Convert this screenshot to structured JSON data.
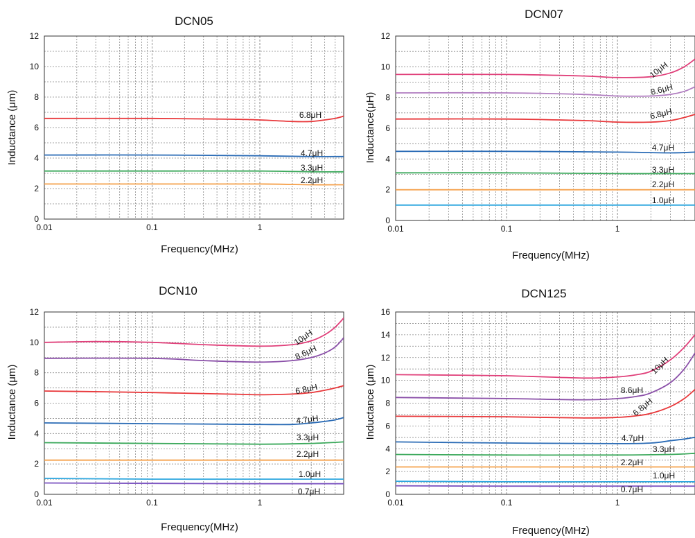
{
  "chart_data": [
    {
      "type": "line",
      "title": "DCN05",
      "xlabel": "Frequency(MHz)",
      "ylabel": "Inductance (μm)",
      "x_scale": "log",
      "xlim": [
        0.01,
        6
      ],
      "ylim": [
        0,
        12
      ],
      "x_ticks": [
        0.01,
        0.1,
        1
      ],
      "x_tick_labels": [
        "0.01",
        "0.1",
        "1"
      ],
      "y_ticks": [
        0,
        2,
        4,
        6,
        8,
        10,
        12
      ],
      "y_tick_labels": [
        "0",
        "2",
        "4",
        "6",
        "8",
        "10",
        "12"
      ],
      "grid": true,
      "series": [
        {
          "name": "6.8μH",
          "color": "#e8373a",
          "x": [
            0.01,
            0.1,
            0.5,
            1,
            2,
            3,
            4,
            5,
            6
          ],
          "y": [
            6.6,
            6.6,
            6.55,
            6.5,
            6.4,
            6.4,
            6.5,
            6.6,
            6.75
          ]
        },
        {
          "name": "4.7μH",
          "color": "#2a6bb5",
          "x": [
            0.01,
            0.1,
            1,
            3,
            6
          ],
          "y": [
            4.2,
            4.2,
            4.15,
            4.1,
            4.1
          ]
        },
        {
          "name": "3.3μH",
          "color": "#3aa85a",
          "x": [
            0.01,
            0.1,
            1,
            3,
            6
          ],
          "y": [
            3.15,
            3.15,
            3.15,
            3.1,
            3.1
          ]
        },
        {
          "name": "2.2μH",
          "color": "#f5a04a",
          "x": [
            0.01,
            0.1,
            1,
            3,
            6
          ],
          "y": [
            2.3,
            2.3,
            2.3,
            2.25,
            2.25
          ]
        }
      ]
    },
    {
      "type": "line",
      "title": "DCN07",
      "xlabel": "Frequency(MHz)",
      "ylabel": "Inductance(μH)",
      "x_scale": "log",
      "xlim": [
        0.01,
        5
      ],
      "ylim": [
        0,
        12
      ],
      "x_ticks": [
        0.01,
        0.1,
        1
      ],
      "x_tick_labels": [
        "0.01",
        "0.1",
        "1"
      ],
      "y_ticks": [
        0,
        2,
        4,
        6,
        8,
        10,
        12
      ],
      "y_tick_labels": [
        "0",
        "2",
        "4",
        "6",
        "8",
        "10",
        "12"
      ],
      "grid": true,
      "series": [
        {
          "name": "10μH",
          "color": "#e0407a",
          "x": [
            0.01,
            0.1,
            0.5,
            1,
            2,
            3,
            4,
            5
          ],
          "y": [
            9.5,
            9.5,
            9.4,
            9.3,
            9.35,
            9.6,
            10.0,
            10.5
          ]
        },
        {
          "name": "8.6μH",
          "color": "#b07cc0",
          "x": [
            0.01,
            0.1,
            0.5,
            1,
            2,
            3,
            4,
            5
          ],
          "y": [
            8.3,
            8.3,
            8.2,
            8.1,
            8.1,
            8.2,
            8.4,
            8.7
          ]
        },
        {
          "name": "6.8μH",
          "color": "#e8373a",
          "x": [
            0.01,
            0.1,
            0.5,
            1,
            2,
            3,
            4,
            5
          ],
          "y": [
            6.6,
            6.6,
            6.5,
            6.4,
            6.4,
            6.5,
            6.7,
            6.9
          ]
        },
        {
          "name": "4.7μH",
          "color": "#2a6bb5",
          "x": [
            0.01,
            0.1,
            1,
            3,
            5
          ],
          "y": [
            4.5,
            4.5,
            4.45,
            4.4,
            4.45
          ]
        },
        {
          "name": "3.3μH",
          "color": "#3aa85a",
          "x": [
            0.01,
            0.1,
            1,
            5
          ],
          "y": [
            3.1,
            3.1,
            3.05,
            3.05
          ]
        },
        {
          "name": "2.2μH",
          "color": "#f5a04a",
          "x": [
            0.01,
            0.1,
            1,
            5
          ],
          "y": [
            2.0,
            2.0,
            2.0,
            2.0
          ]
        },
        {
          "name": "1.0μH",
          "color": "#2fa7df",
          "x": [
            0.01,
            0.1,
            1,
            5
          ],
          "y": [
            1.0,
            1.0,
            1.0,
            1.0
          ]
        }
      ]
    },
    {
      "type": "line",
      "title": "DCN10",
      "xlabel": "Frequency(MHz)",
      "ylabel": "Inductance (μm)",
      "x_scale": "log",
      "xlim": [
        0.01,
        6
      ],
      "ylim": [
        0,
        12
      ],
      "x_ticks": [
        0.01,
        0.1,
        1
      ],
      "x_tick_labels": [
        "0.01",
        "0.1",
        "1"
      ],
      "y_ticks": [
        0,
        2,
        4,
        6,
        8,
        10,
        12
      ],
      "y_tick_labels": [
        "0",
        "2",
        "4",
        "6",
        "8",
        "10",
        "12"
      ],
      "grid": true,
      "series": [
        {
          "name": "10μH",
          "color": "#e0407a",
          "x": [
            0.01,
            0.03,
            0.1,
            0.3,
            1,
            2,
            3,
            4,
            5,
            6
          ],
          "y": [
            10.0,
            10.05,
            10.0,
            9.85,
            9.75,
            9.85,
            10.1,
            10.5,
            11.0,
            11.6
          ]
        },
        {
          "name": "8.6μH",
          "color": "#8a4fa8",
          "x": [
            0.01,
            0.1,
            0.3,
            1,
            2,
            3,
            4,
            5,
            6
          ],
          "y": [
            8.95,
            8.95,
            8.8,
            8.7,
            8.8,
            9.0,
            9.3,
            9.7,
            10.3
          ]
        },
        {
          "name": "6.8μH",
          "color": "#e8373a",
          "x": [
            0.01,
            0.1,
            0.5,
            1,
            2,
            3,
            4,
            5,
            6
          ],
          "y": [
            6.8,
            6.7,
            6.6,
            6.55,
            6.6,
            6.7,
            6.85,
            7.0,
            7.15
          ]
        },
        {
          "name": "4.7μH",
          "color": "#2a6bb5",
          "x": [
            0.01,
            0.1,
            1,
            2,
            3,
            4,
            5,
            6
          ],
          "y": [
            4.7,
            4.65,
            4.6,
            4.6,
            4.7,
            4.8,
            4.9,
            5.05
          ]
        },
        {
          "name": "3.3μH",
          "color": "#3aa85a",
          "x": [
            0.01,
            0.1,
            1,
            3,
            6
          ],
          "y": [
            3.4,
            3.35,
            3.3,
            3.35,
            3.45
          ]
        },
        {
          "name": "2.2μH",
          "color": "#f5a04a",
          "x": [
            0.01,
            0.1,
            1,
            6
          ],
          "y": [
            2.25,
            2.25,
            2.25,
            2.25
          ]
        },
        {
          "name": "1.0μH",
          "color": "#2fa7df",
          "x": [
            0.01,
            0.1,
            1,
            6
          ],
          "y": [
            1.05,
            1.0,
            1.0,
            1.0
          ]
        },
        {
          "name": "0.7μH",
          "color": "#7e57c2",
          "x": [
            0.01,
            0.1,
            1,
            6
          ],
          "y": [
            0.75,
            0.72,
            0.7,
            0.7
          ]
        }
      ]
    },
    {
      "type": "line",
      "title": "DCN125",
      "xlabel": "Frequency(MHz)",
      "ylabel": "Inductance (μm)",
      "x_scale": "log",
      "xlim": [
        0.01,
        5
      ],
      "ylim": [
        0,
        16
      ],
      "x_ticks": [
        0.01,
        0.1,
        1
      ],
      "x_tick_labels": [
        "0.01",
        "0.1",
        "1"
      ],
      "y_ticks": [
        0,
        2,
        4,
        6,
        8,
        10,
        12,
        14,
        16
      ],
      "y_tick_labels": [
        "0",
        "2",
        "4",
        "6",
        "8",
        "10",
        "12",
        "14",
        "16"
      ],
      "grid": true,
      "series": [
        {
          "name": "10μH",
          "color": "#e0407a",
          "x": [
            0.01,
            0.1,
            0.5,
            1,
            1.5,
            2,
            3,
            4,
            5
          ],
          "y": [
            10.5,
            10.4,
            10.2,
            10.3,
            10.5,
            10.8,
            11.8,
            12.9,
            14.0
          ]
        },
        {
          "name": "8.6μH",
          "color": "#8a4fa8",
          "x": [
            0.01,
            0.1,
            0.5,
            1,
            1.5,
            2,
            3,
            4,
            5
          ],
          "y": [
            8.5,
            8.4,
            8.3,
            8.4,
            8.6,
            8.9,
            9.8,
            11.0,
            12.4
          ]
        },
        {
          "name": "6.8μH",
          "color": "#e8373a",
          "x": [
            0.01,
            0.1,
            0.5,
            1,
            1.5,
            2,
            3,
            4,
            5
          ],
          "y": [
            6.85,
            6.8,
            6.7,
            6.75,
            6.9,
            7.1,
            7.7,
            8.4,
            9.2
          ]
        },
        {
          "name": "4.7μH",
          "color": "#2a6bb5",
          "x": [
            0.01,
            0.1,
            1,
            2,
            3,
            4,
            5
          ],
          "y": [
            4.6,
            4.5,
            4.45,
            4.5,
            4.7,
            4.85,
            5.0
          ]
        },
        {
          "name": "3.3μH",
          "color": "#3aa85a",
          "x": [
            0.01,
            0.1,
            1,
            3,
            5
          ],
          "y": [
            3.5,
            3.45,
            3.45,
            3.5,
            3.6
          ]
        },
        {
          "name": "2.2μH",
          "color": "#f5a04a",
          "x": [
            0.01,
            0.1,
            1,
            5
          ],
          "y": [
            2.4,
            2.4,
            2.4,
            2.4
          ]
        },
        {
          "name": "1.0μH",
          "color": "#2fa7df",
          "x": [
            0.01,
            0.1,
            1,
            5
          ],
          "y": [
            1.15,
            1.1,
            1.1,
            1.1
          ]
        },
        {
          "name": "0.7μH",
          "color": "#7e57c2",
          "x": [
            0.01,
            0.1,
            1,
            5
          ],
          "y": [
            0.75,
            0.72,
            0.72,
            0.72
          ]
        }
      ]
    }
  ]
}
